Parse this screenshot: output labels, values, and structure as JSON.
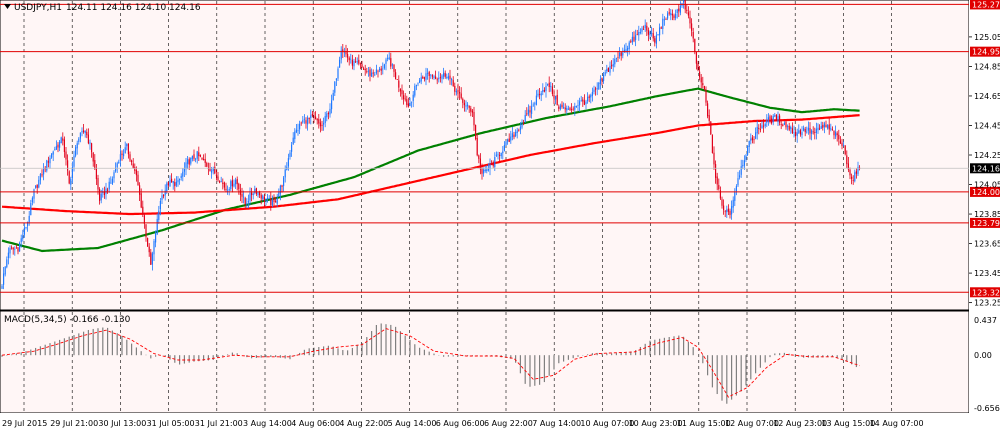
{
  "chart_header": {
    "symbol_label": "USDJPY,H1",
    "ohlc_label": "124.11 124.16 124.10 124.16"
  },
  "macd_header": {
    "label": "MACD(5,34,5) -0.166 -0.130"
  },
  "colors": {
    "background": "#FFF6F6",
    "bull_candle": "#1E78FF",
    "bear_candle": "#E0001A",
    "ma_fast": "#FF0000",
    "ma_slow": "#008000",
    "level_line": "#E00000",
    "macd_hist": "#808080",
    "macd_signal": "#FF0000",
    "grid": "#000000"
  },
  "chart_data": [
    {
      "type": "candlestick",
      "symbol": "USDJPY",
      "timeframe": "H1",
      "ylim": [
        123.2,
        125.3
      ],
      "x_tick_labels": [
        "29 Jul 2015",
        "29 Jul 21:00",
        "30 Jul 13:00",
        "31 Jul 05:00",
        "31 Jul 21:00",
        "3 Aug 14:00",
        "4 Aug 06:00",
        "4 Aug 22:00",
        "5 Aug 14:00",
        "6 Aug 06:00",
        "6 Aug 22:00",
        "7 Aug 14:00",
        "10 Aug 07:00",
        "10 Aug 23:00",
        "11 Aug 15:00",
        "12 Aug 07:00",
        "12 Aug 23:00",
        "13 Aug 15:00",
        "14 Aug 07:00"
      ],
      "y_tick_labels": [
        "125.05",
        "124.85",
        "124.65",
        "124.45",
        "124.25",
        "124.05",
        "123.85",
        "123.65",
        "123.45",
        "123.25"
      ],
      "y_tick_values": [
        125.05,
        124.85,
        124.65,
        124.45,
        124.25,
        124.05,
        123.85,
        123.65,
        123.45,
        123.25
      ],
      "horizontal_levels": [
        {
          "label": "125.27",
          "value": 125.27
        },
        {
          "label": "124.95",
          "value": 124.95
        },
        {
          "label": "124.00",
          "value": 124.0
        },
        {
          "label": "123.79",
          "value": 123.79
        },
        {
          "label": "123.32",
          "value": 123.32
        }
      ],
      "current_price": {
        "label": "124.16",
        "value": 124.16
      },
      "close_anchors": [
        [
          0,
          123.38
        ],
        [
          4,
          123.6
        ],
        [
          10,
          123.62
        ],
        [
          16,
          123.8
        ],
        [
          20,
          124.0
        ],
        [
          26,
          124.15
        ],
        [
          32,
          124.28
        ],
        [
          38,
          124.36
        ],
        [
          42,
          124.05
        ],
        [
          47,
          124.35
        ],
        [
          52,
          124.42
        ],
        [
          56,
          124.28
        ],
        [
          61,
          123.95
        ],
        [
          68,
          124.06
        ],
        [
          73,
          124.23
        ],
        [
          78,
          124.3
        ],
        [
          84,
          124.1
        ],
        [
          88,
          123.85
        ],
        [
          93,
          123.5
        ],
        [
          99,
          123.95
        ],
        [
          104,
          124.06
        ],
        [
          110,
          124.06
        ],
        [
          116,
          124.2
        ],
        [
          122,
          124.25
        ],
        [
          128,
          124.18
        ],
        [
          134,
          124.12
        ],
        [
          140,
          124.02
        ],
        [
          146,
          124.08
        ],
        [
          152,
          123.92
        ],
        [
          158,
          124.02
        ],
        [
          164,
          123.95
        ],
        [
          170,
          123.92
        ],
        [
          176,
          124.08
        ],
        [
          182,
          124.38
        ],
        [
          188,
          124.48
        ],
        [
          194,
          124.5
        ],
        [
          200,
          124.44
        ],
        [
          206,
          124.6
        ],
        [
          212,
          124.98
        ],
        [
          218,
          124.88
        ],
        [
          224,
          124.85
        ],
        [
          230,
          124.8
        ],
        [
          236,
          124.82
        ],
        [
          242,
          124.9
        ],
        [
          248,
          124.72
        ],
        [
          254,
          124.58
        ],
        [
          260,
          124.75
        ],
        [
          266,
          124.8
        ],
        [
          272,
          124.78
        ],
        [
          278,
          124.8
        ],
        [
          284,
          124.68
        ],
        [
          290,
          124.58
        ],
        [
          294,
          124.55
        ],
        [
          297,
          124.26
        ],
        [
          300,
          124.12
        ],
        [
          306,
          124.18
        ],
        [
          312,
          124.28
        ],
        [
          318,
          124.36
        ],
        [
          324,
          124.45
        ],
        [
          330,
          124.55
        ],
        [
          336,
          124.68
        ],
        [
          342,
          124.72
        ],
        [
          348,
          124.58
        ],
        [
          354,
          124.55
        ],
        [
          360,
          124.6
        ],
        [
          366,
          124.62
        ],
        [
          372,
          124.7
        ],
        [
          378,
          124.82
        ],
        [
          384,
          124.9
        ],
        [
          390,
          124.98
        ],
        [
          396,
          125.05
        ],
        [
          402,
          125.12
        ],
        [
          408,
          125.02
        ],
        [
          414,
          125.18
        ],
        [
          420,
          125.2
        ],
        [
          426,
          125.28
        ],
        [
          431,
          125.1
        ],
        [
          435,
          124.8
        ],
        [
          439,
          124.68
        ],
        [
          442,
          124.46
        ],
        [
          446,
          124.1
        ],
        [
          450,
          123.9
        ],
        [
          455,
          123.86
        ],
        [
          460,
          124.1
        ],
        [
          466,
          124.3
        ],
        [
          472,
          124.42
        ],
        [
          478,
          124.48
        ],
        [
          484,
          124.5
        ],
        [
          490,
          124.45
        ],
        [
          496,
          124.4
        ],
        [
          502,
          124.42
        ],
        [
          508,
          124.4
        ],
        [
          514,
          124.45
        ],
        [
          520,
          124.4
        ],
        [
          526,
          124.3
        ],
        [
          531,
          124.08
        ],
        [
          536,
          124.16
        ]
      ],
      "ma_fast_anchors": [
        [
          0,
          123.9
        ],
        [
          40,
          123.87
        ],
        [
          80,
          123.85
        ],
        [
          120,
          123.86
        ],
        [
          170,
          123.9
        ],
        [
          210,
          123.95
        ],
        [
          250,
          124.05
        ],
        [
          290,
          124.15
        ],
        [
          330,
          124.25
        ],
        [
          370,
          124.33
        ],
        [
          410,
          124.4
        ],
        [
          435,
          124.45
        ],
        [
          470,
          124.48
        ],
        [
          500,
          124.49
        ],
        [
          536,
          124.52
        ]
      ],
      "ma_slow_anchors": [
        [
          0,
          123.67
        ],
        [
          25,
          123.6
        ],
        [
          60,
          123.62
        ],
        [
          100,
          123.74
        ],
        [
          140,
          123.88
        ],
        [
          180,
          123.98
        ],
        [
          220,
          124.1
        ],
        [
          260,
          124.28
        ],
        [
          300,
          124.4
        ],
        [
          340,
          124.5
        ],
        [
          380,
          124.58
        ],
        [
          410,
          124.65
        ],
        [
          435,
          124.7
        ],
        [
          455,
          124.64
        ],
        [
          480,
          124.57
        ],
        [
          500,
          124.54
        ],
        [
          520,
          124.56
        ],
        [
          536,
          124.55
        ]
      ],
      "bars": 537
    },
    {
      "type": "histogram",
      "name": "MACD(5,34,5)",
      "current_main": -0.166,
      "current_signal": -0.13,
      "ylim": [
        -0.656,
        0.437
      ],
      "y_tick_labels": [
        "0.437",
        "0.00",
        "-0.656"
      ],
      "y_tick_values": [
        0.437,
        0.0,
        -0.656
      ],
      "hist_anchors": [
        [
          0,
          -0.02
        ],
        [
          15,
          0.05
        ],
        [
          30,
          0.15
        ],
        [
          45,
          0.25
        ],
        [
          55,
          0.32
        ],
        [
          65,
          0.35
        ],
        [
          75,
          0.24
        ],
        [
          85,
          0.08
        ],
        [
          93,
          -0.04
        ],
        [
          100,
          0.01
        ],
        [
          110,
          -0.12
        ],
        [
          120,
          -0.08
        ],
        [
          132,
          -0.06
        ],
        [
          145,
          0.04
        ],
        [
          155,
          -0.04
        ],
        [
          170,
          -0.02
        ],
        [
          180,
          -0.05
        ],
        [
          190,
          0.08
        ],
        [
          205,
          0.12
        ],
        [
          215,
          0.05
        ],
        [
          225,
          0.15
        ],
        [
          235,
          0.4
        ],
        [
          245,
          0.37
        ],
        [
          260,
          0.1
        ],
        [
          275,
          -0.02
        ],
        [
          290,
          -0.01
        ],
        [
          300,
          0.0
        ],
        [
          310,
          -0.02
        ],
        [
          320,
          -0.05
        ],
        [
          328,
          -0.4
        ],
        [
          338,
          -0.36
        ],
        [
          348,
          -0.1
        ],
        [
          358,
          -0.03
        ],
        [
          370,
          0.03
        ],
        [
          380,
          0.02
        ],
        [
          395,
          0.05
        ],
        [
          405,
          0.18
        ],
        [
          415,
          0.22
        ],
        [
          425,
          0.25
        ],
        [
          432,
          0.1
        ],
        [
          438,
          -0.1
        ],
        [
          444,
          -0.4
        ],
        [
          452,
          -0.62
        ],
        [
          462,
          -0.45
        ],
        [
          472,
          -0.2
        ],
        [
          482,
          0.02
        ],
        [
          490,
          0.03
        ],
        [
          500,
          -0.03
        ],
        [
          510,
          -0.03
        ],
        [
          520,
          -0.02
        ],
        [
          528,
          -0.08
        ],
        [
          536,
          -0.17
        ]
      ],
      "signal_anchors": [
        [
          0,
          0.0
        ],
        [
          20,
          0.05
        ],
        [
          35,
          0.14
        ],
        [
          50,
          0.24
        ],
        [
          65,
          0.31
        ],
        [
          80,
          0.2
        ],
        [
          95,
          0.02
        ],
        [
          110,
          -0.06
        ],
        [
          125,
          -0.06
        ],
        [
          145,
          0.0
        ],
        [
          160,
          -0.02
        ],
        [
          180,
          -0.02
        ],
        [
          195,
          0.05
        ],
        [
          210,
          0.1
        ],
        [
          225,
          0.13
        ],
        [
          240,
          0.33
        ],
        [
          255,
          0.24
        ],
        [
          270,
          0.05
        ],
        [
          290,
          -0.01
        ],
        [
          310,
          -0.01
        ],
        [
          320,
          -0.04
        ],
        [
          332,
          -0.3
        ],
        [
          345,
          -0.25
        ],
        [
          358,
          -0.05
        ],
        [
          372,
          0.02
        ],
        [
          395,
          0.04
        ],
        [
          410,
          0.15
        ],
        [
          425,
          0.22
        ],
        [
          435,
          0.1
        ],
        [
          443,
          -0.15
        ],
        [
          454,
          -0.52
        ],
        [
          466,
          -0.4
        ],
        [
          478,
          -0.15
        ],
        [
          490,
          0.01
        ],
        [
          505,
          -0.02
        ],
        [
          520,
          -0.02
        ],
        [
          536,
          -0.13
        ]
      ]
    }
  ]
}
